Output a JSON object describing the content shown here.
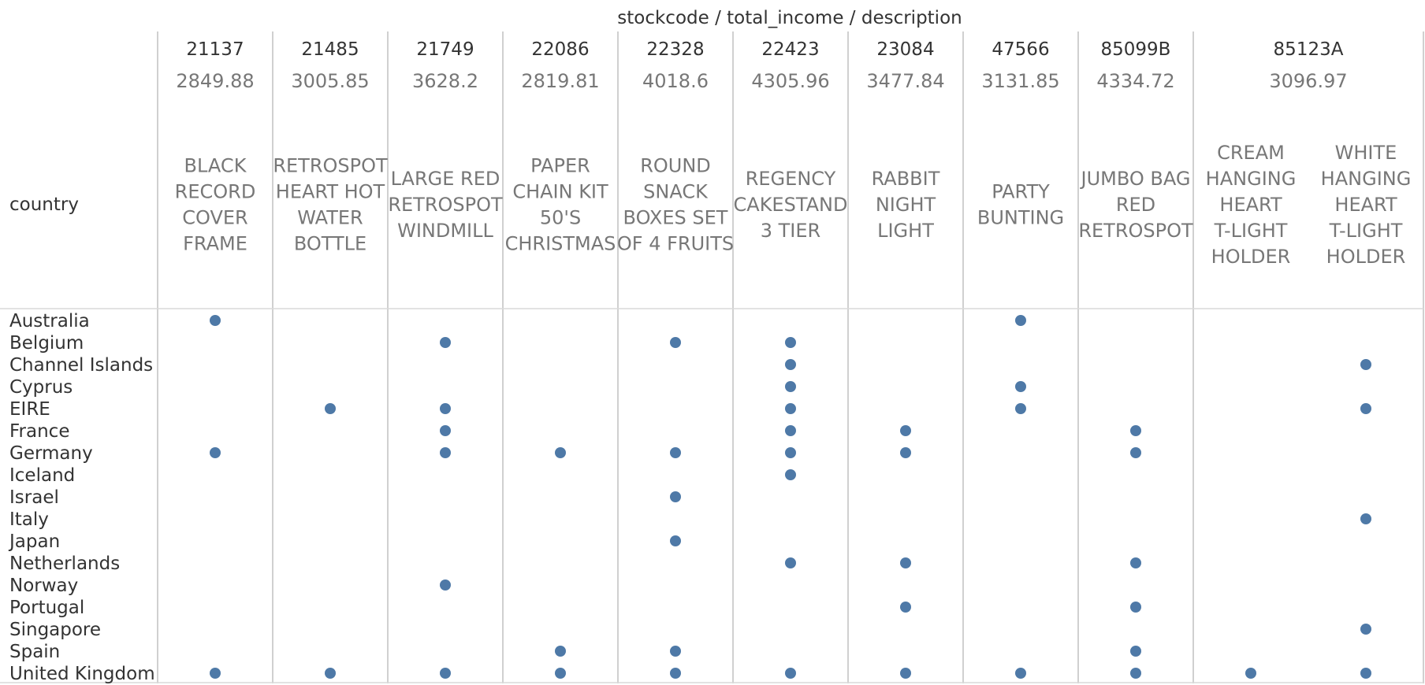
{
  "chart_data": {
    "type": "scatter",
    "title": "stockcode / total_income / description",
    "row_axis_title": "country",
    "columns": [
      {
        "stockcode": "21137",
        "total_income": "2849.88",
        "descriptions": [
          [
            "BLACK",
            "RECORD",
            "COVER",
            "FRAME"
          ]
        ]
      },
      {
        "stockcode": "21485",
        "total_income": "3005.85",
        "descriptions": [
          [
            "RETROSPOT",
            "HEART HOT",
            "WATER",
            "BOTTLE"
          ]
        ]
      },
      {
        "stockcode": "21749",
        "total_income": "3628.2",
        "descriptions": [
          [
            "LARGE RED",
            "RETROSPOT",
            "WINDMILL"
          ]
        ]
      },
      {
        "stockcode": "22086",
        "total_income": "2819.81",
        "descriptions": [
          [
            "PAPER",
            "CHAIN KIT",
            "50'S",
            "CHRISTMAS"
          ]
        ]
      },
      {
        "stockcode": "22328",
        "total_income": "4018.6",
        "descriptions": [
          [
            "ROUND",
            "SNACK",
            "BOXES SET",
            "OF 4 FRUITS"
          ]
        ]
      },
      {
        "stockcode": "22423",
        "total_income": "4305.96",
        "descriptions": [
          [
            "REGENCY",
            "CAKESTAND",
            "3 TIER"
          ]
        ]
      },
      {
        "stockcode": "23084",
        "total_income": "3477.84",
        "descriptions": [
          [
            "RABBIT",
            "NIGHT",
            "LIGHT"
          ]
        ]
      },
      {
        "stockcode": "47566",
        "total_income": "3131.85",
        "descriptions": [
          [
            "PARTY",
            "BUNTING"
          ]
        ]
      },
      {
        "stockcode": "85099B",
        "total_income": "4334.72",
        "descriptions": [
          [
            "JUMBO BAG",
            "RED",
            "RETROSPOT"
          ]
        ]
      },
      {
        "stockcode": "85123A",
        "total_income": "3096.97",
        "descriptions": [
          [
            "CREAM",
            "HANGING",
            "HEART",
            "T-LIGHT",
            "HOLDER"
          ],
          [
            "WHITE",
            "HANGING",
            "HEART",
            "T-LIGHT",
            "HOLDER"
          ]
        ]
      }
    ],
    "countries": [
      "Australia",
      "Belgium",
      "Channel Islands",
      "Cyprus",
      "EIRE",
      "France",
      "Germany",
      "Iceland",
      "Israel",
      "Italy",
      "Japan",
      "Netherlands",
      "Norway",
      "Portugal",
      "Singapore",
      "Spain",
      "United Kingdom"
    ],
    "points": [
      {
        "country": "Australia",
        "column": 0,
        "description": 0
      },
      {
        "country": "Australia",
        "column": 7,
        "description": 0
      },
      {
        "country": "Belgium",
        "column": 2,
        "description": 0
      },
      {
        "country": "Belgium",
        "column": 4,
        "description": 0
      },
      {
        "country": "Belgium",
        "column": 5,
        "description": 0
      },
      {
        "country": "Channel Islands",
        "column": 5,
        "description": 0
      },
      {
        "country": "Channel Islands",
        "column": 9,
        "description": 1
      },
      {
        "country": "Cyprus",
        "column": 5,
        "description": 0
      },
      {
        "country": "Cyprus",
        "column": 7,
        "description": 0
      },
      {
        "country": "EIRE",
        "column": 1,
        "description": 0
      },
      {
        "country": "EIRE",
        "column": 2,
        "description": 0
      },
      {
        "country": "EIRE",
        "column": 5,
        "description": 0
      },
      {
        "country": "EIRE",
        "column": 7,
        "description": 0
      },
      {
        "country": "EIRE",
        "column": 9,
        "description": 1
      },
      {
        "country": "France",
        "column": 2,
        "description": 0
      },
      {
        "country": "France",
        "column": 5,
        "description": 0
      },
      {
        "country": "France",
        "column": 6,
        "description": 0
      },
      {
        "country": "France",
        "column": 8,
        "description": 0
      },
      {
        "country": "Germany",
        "column": 0,
        "description": 0
      },
      {
        "country": "Germany",
        "column": 2,
        "description": 0
      },
      {
        "country": "Germany",
        "column": 3,
        "description": 0
      },
      {
        "country": "Germany",
        "column": 4,
        "description": 0
      },
      {
        "country": "Germany",
        "column": 5,
        "description": 0
      },
      {
        "country": "Germany",
        "column": 6,
        "description": 0
      },
      {
        "country": "Germany",
        "column": 8,
        "description": 0
      },
      {
        "country": "Iceland",
        "column": 5,
        "description": 0
      },
      {
        "country": "Israel",
        "column": 4,
        "description": 0
      },
      {
        "country": "Italy",
        "column": 9,
        "description": 1
      },
      {
        "country": "Japan",
        "column": 4,
        "description": 0
      },
      {
        "country": "Netherlands",
        "column": 5,
        "description": 0
      },
      {
        "country": "Netherlands",
        "column": 6,
        "description": 0
      },
      {
        "country": "Netherlands",
        "column": 8,
        "description": 0
      },
      {
        "country": "Norway",
        "column": 2,
        "description": 0
      },
      {
        "country": "Portugal",
        "column": 6,
        "description": 0
      },
      {
        "country": "Portugal",
        "column": 8,
        "description": 0
      },
      {
        "country": "Singapore",
        "column": 9,
        "description": 1
      },
      {
        "country": "Spain",
        "column": 3,
        "description": 0
      },
      {
        "country": "Spain",
        "column": 4,
        "description": 0
      },
      {
        "country": "Spain",
        "column": 8,
        "description": 0
      },
      {
        "country": "United Kingdom",
        "column": 0,
        "description": 0
      },
      {
        "country": "United Kingdom",
        "column": 1,
        "description": 0
      },
      {
        "country": "United Kingdom",
        "column": 2,
        "description": 0
      },
      {
        "country": "United Kingdom",
        "column": 3,
        "description": 0
      },
      {
        "country": "United Kingdom",
        "column": 4,
        "description": 0
      },
      {
        "country": "United Kingdom",
        "column": 5,
        "description": 0
      },
      {
        "country": "United Kingdom",
        "column": 6,
        "description": 0
      },
      {
        "country": "United Kingdom",
        "column": 7,
        "description": 0
      },
      {
        "country": "United Kingdom",
        "column": 8,
        "description": 0
      },
      {
        "country": "United Kingdom",
        "column": 9,
        "description": 0
      },
      {
        "country": "United Kingdom",
        "column": 9,
        "description": 1
      }
    ],
    "mark_color": "#4e79a7",
    "grid": true,
    "legend": "none"
  }
}
